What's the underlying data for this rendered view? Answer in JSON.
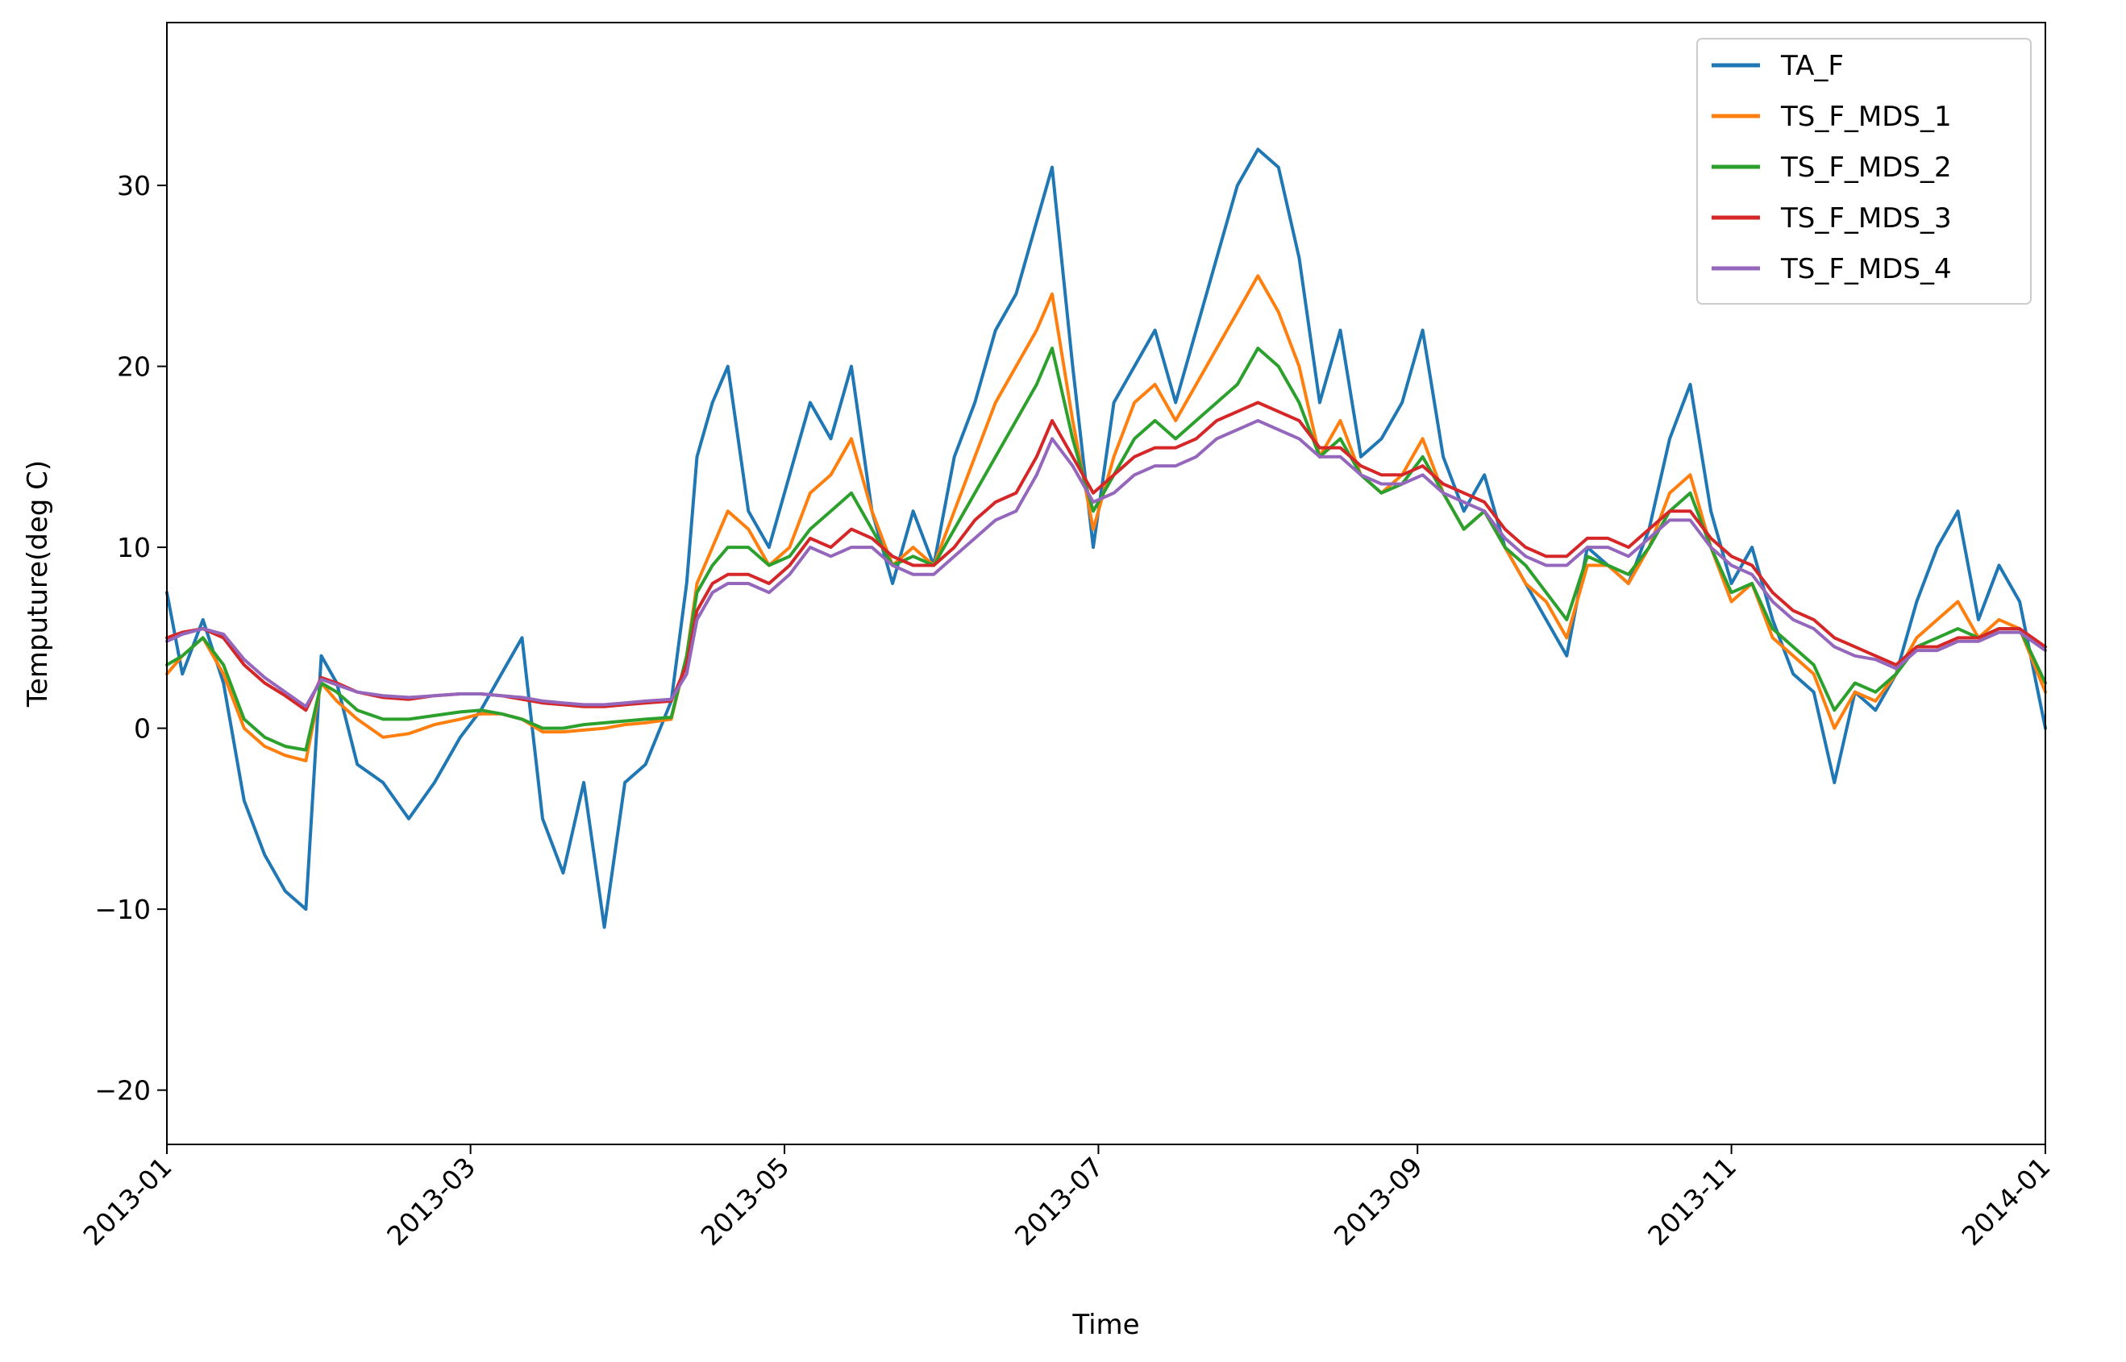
{
  "chart_data": {
    "type": "line",
    "title": "",
    "xlabel": "Time",
    "ylabel": "Temputure(deg C)",
    "xlim": [
      "2013-01-01",
      "2014-01-01"
    ],
    "ylim": [
      -23,
      39
    ],
    "x_ticks": [
      "2013-01",
      "2013-03",
      "2013-05",
      "2013-07",
      "2013-09",
      "2013-11",
      "2014-01"
    ],
    "y_ticks": [
      -20,
      -10,
      0,
      10,
      20,
      30
    ],
    "y_tick_labels": [
      "−20",
      "−10",
      "0",
      "10",
      "20",
      "30"
    ],
    "grid": false,
    "legend_position": "top-right",
    "x": [
      "2013-01-01",
      "2013-01-04",
      "2013-01-08",
      "2013-01-12",
      "2013-01-16",
      "2013-01-20",
      "2013-01-24",
      "2013-01-28",
      "2013-01-31",
      "2013-02-03",
      "2013-02-07",
      "2013-02-12",
      "2013-02-17",
      "2013-02-22",
      "2013-02-27",
      "2013-03-03",
      "2013-03-07",
      "2013-03-11",
      "2013-03-15",
      "2013-03-19",
      "2013-03-23",
      "2013-03-27",
      "2013-03-31",
      "2013-04-04",
      "2013-04-09",
      "2013-04-12",
      "2013-04-14",
      "2013-04-17",
      "2013-04-20",
      "2013-04-24",
      "2013-04-28",
      "2013-05-02",
      "2013-05-06",
      "2013-05-10",
      "2013-05-14",
      "2013-05-18",
      "2013-05-22",
      "2013-05-26",
      "2013-05-30",
      "2013-06-03",
      "2013-06-07",
      "2013-06-11",
      "2013-06-15",
      "2013-06-19",
      "2013-06-22",
      "2013-06-26",
      "2013-06-30",
      "2013-07-04",
      "2013-07-08",
      "2013-07-12",
      "2013-07-16",
      "2013-07-20",
      "2013-07-24",
      "2013-07-28",
      "2013-08-01",
      "2013-08-05",
      "2013-08-09",
      "2013-08-13",
      "2013-08-17",
      "2013-08-21",
      "2013-08-25",
      "2013-08-29",
      "2013-09-02",
      "2013-09-06",
      "2013-09-10",
      "2013-09-14",
      "2013-09-18",
      "2013-09-22",
      "2013-09-26",
      "2013-09-30",
      "2013-10-04",
      "2013-10-08",
      "2013-10-12",
      "2013-10-16",
      "2013-10-20",
      "2013-10-24",
      "2013-10-28",
      "2013-11-01",
      "2013-11-05",
      "2013-11-09",
      "2013-11-13",
      "2013-11-17",
      "2013-11-21",
      "2013-11-25",
      "2013-11-29",
      "2013-12-03",
      "2013-12-07",
      "2013-12-11",
      "2013-12-15",
      "2013-12-19",
      "2013-12-23",
      "2013-12-27",
      "2014-01-01"
    ],
    "series": [
      {
        "name": "TA_F",
        "color": "#1f77b4",
        "values": [
          7.5,
          3.0,
          6.0,
          2.5,
          -4.0,
          -7.0,
          -9.0,
          -10.0,
          4.0,
          2.5,
          -2.0,
          -3.0,
          -5.0,
          -3.0,
          -0.5,
          1.0,
          3.0,
          5.0,
          -5.0,
          -8.0,
          -3.0,
          -11.0,
          -3.0,
          -2.0,
          1.5,
          8.0,
          15.0,
          18.0,
          20.0,
          12.0,
          10.0,
          14.0,
          18.0,
          16.0,
          20.0,
          12.0,
          8.0,
          12.0,
          9.0,
          15.0,
          18.0,
          22.0,
          24.0,
          28.0,
          31.0,
          20.0,
          10.0,
          18.0,
          20.0,
          22.0,
          18.0,
          22.0,
          26.0,
          30.0,
          32.0,
          31.0,
          26.0,
          18.0,
          22.0,
          15.0,
          16.0,
          18.0,
          22.0,
          15.0,
          12.0,
          14.0,
          10.0,
          8.0,
          6.0,
          4.0,
          10.0,
          9.0,
          8.0,
          11.0,
          16.0,
          19.0,
          12.0,
          8.0,
          10.0,
          6.0,
          3.0,
          2.0,
          -3.0,
          2.0,
          1.0,
          3.0,
          7.0,
          10.0,
          12.0,
          6.0,
          9.0,
          7.0,
          0.0
        ]
      },
      {
        "name": "TS_F_MDS_1",
        "color": "#ff7f0e",
        "values": [
          3.0,
          4.0,
          5.0,
          3.0,
          0.0,
          -1.0,
          -1.5,
          -1.8,
          2.5,
          1.5,
          0.5,
          -0.5,
          -0.3,
          0.2,
          0.5,
          0.8,
          0.8,
          0.5,
          -0.2,
          -0.2,
          -0.1,
          0.0,
          0.2,
          0.3,
          0.5,
          4.0,
          8.0,
          10.0,
          12.0,
          11.0,
          9.0,
          10.0,
          13.0,
          14.0,
          16.0,
          12.0,
          9.0,
          10.0,
          9.0,
          12.0,
          15.0,
          18.0,
          20.0,
          22.0,
          24.0,
          17.0,
          11.0,
          15.0,
          18.0,
          19.0,
          17.0,
          19.0,
          21.0,
          23.0,
          25.0,
          23.0,
          20.0,
          15.0,
          17.0,
          14.0,
          13.0,
          14.0,
          16.0,
          13.0,
          11.0,
          12.0,
          10.0,
          8.0,
          7.0,
          5.0,
          9.0,
          9.0,
          8.0,
          10.0,
          13.0,
          14.0,
          10.0,
          7.0,
          8.0,
          5.0,
          4.0,
          3.0,
          0.0,
          2.0,
          1.5,
          3.0,
          5.0,
          6.0,
          7.0,
          5.0,
          6.0,
          5.5,
          2.0
        ]
      },
      {
        "name": "TS_F_MDS_2",
        "color": "#2ca02c",
        "values": [
          3.5,
          4.0,
          5.0,
          3.5,
          0.5,
          -0.5,
          -1.0,
          -1.2,
          2.5,
          2.0,
          1.0,
          0.5,
          0.5,
          0.7,
          0.9,
          1.0,
          0.8,
          0.5,
          0.0,
          0.0,
          0.2,
          0.3,
          0.4,
          0.5,
          0.6,
          4.0,
          7.5,
          9.0,
          10.0,
          10.0,
          9.0,
          9.5,
          11.0,
          12.0,
          13.0,
          11.0,
          9.0,
          9.5,
          9.0,
          11.0,
          13.0,
          15.0,
          17.0,
          19.0,
          21.0,
          16.0,
          12.0,
          14.0,
          16.0,
          17.0,
          16.0,
          17.0,
          18.0,
          19.0,
          21.0,
          20.0,
          18.0,
          15.0,
          16.0,
          14.0,
          13.0,
          13.5,
          15.0,
          13.0,
          11.0,
          12.0,
          10.0,
          9.0,
          7.5,
          6.0,
          9.5,
          9.0,
          8.5,
          10.0,
          12.0,
          13.0,
          10.0,
          7.5,
          8.0,
          5.5,
          4.5,
          3.5,
          1.0,
          2.5,
          2.0,
          3.0,
          4.5,
          5.0,
          5.5,
          5.0,
          5.5,
          5.5,
          2.5
        ]
      },
      {
        "name": "TS_F_MDS_3",
        "color": "#d62728",
        "values": [
          5.0,
          5.3,
          5.5,
          5.0,
          3.5,
          2.5,
          1.8,
          1.0,
          2.8,
          2.5,
          2.0,
          1.7,
          1.6,
          1.8,
          1.9,
          1.9,
          1.8,
          1.6,
          1.4,
          1.3,
          1.2,
          1.2,
          1.3,
          1.4,
          1.5,
          3.5,
          6.5,
          8.0,
          8.5,
          8.5,
          8.0,
          9.0,
          10.5,
          10.0,
          11.0,
          10.5,
          9.5,
          9.0,
          9.0,
          10.0,
          11.5,
          12.5,
          13.0,
          15.0,
          17.0,
          15.0,
          13.0,
          14.0,
          15.0,
          15.5,
          15.5,
          16.0,
          17.0,
          17.5,
          18.0,
          17.5,
          17.0,
          15.5,
          15.5,
          14.5,
          14.0,
          14.0,
          14.5,
          13.5,
          13.0,
          12.5,
          11.0,
          10.0,
          9.5,
          9.5,
          10.5,
          10.5,
          10.0,
          11.0,
          12.0,
          12.0,
          10.5,
          9.5,
          9.0,
          7.5,
          6.5,
          6.0,
          5.0,
          4.5,
          4.0,
          3.5,
          4.5,
          4.5,
          5.0,
          5.0,
          5.5,
          5.5,
          4.5
        ]
      },
      {
        "name": "TS_F_MDS_4",
        "color": "#9467bd",
        "values": [
          4.8,
          5.2,
          5.5,
          5.2,
          3.8,
          2.8,
          2.0,
          1.2,
          2.7,
          2.4,
          2.0,
          1.8,
          1.7,
          1.8,
          1.9,
          1.9,
          1.8,
          1.7,
          1.5,
          1.4,
          1.3,
          1.3,
          1.4,
          1.5,
          1.6,
          3.0,
          6.0,
          7.5,
          8.0,
          8.0,
          7.5,
          8.5,
          10.0,
          9.5,
          10.0,
          10.0,
          9.0,
          8.5,
          8.5,
          9.5,
          10.5,
          11.5,
          12.0,
          14.0,
          16.0,
          14.5,
          12.5,
          13.0,
          14.0,
          14.5,
          14.5,
          15.0,
          16.0,
          16.5,
          17.0,
          16.5,
          16.0,
          15.0,
          15.0,
          14.0,
          13.5,
          13.5,
          14.0,
          13.0,
          12.5,
          12.0,
          10.5,
          9.5,
          9.0,
          9.0,
          10.0,
          10.0,
          9.5,
          10.5,
          11.5,
          11.5,
          10.0,
          9.0,
          8.5,
          7.0,
          6.0,
          5.5,
          4.5,
          4.0,
          3.8,
          3.3,
          4.3,
          4.3,
          4.8,
          4.8,
          5.3,
          5.3,
          4.3
        ]
      }
    ]
  }
}
